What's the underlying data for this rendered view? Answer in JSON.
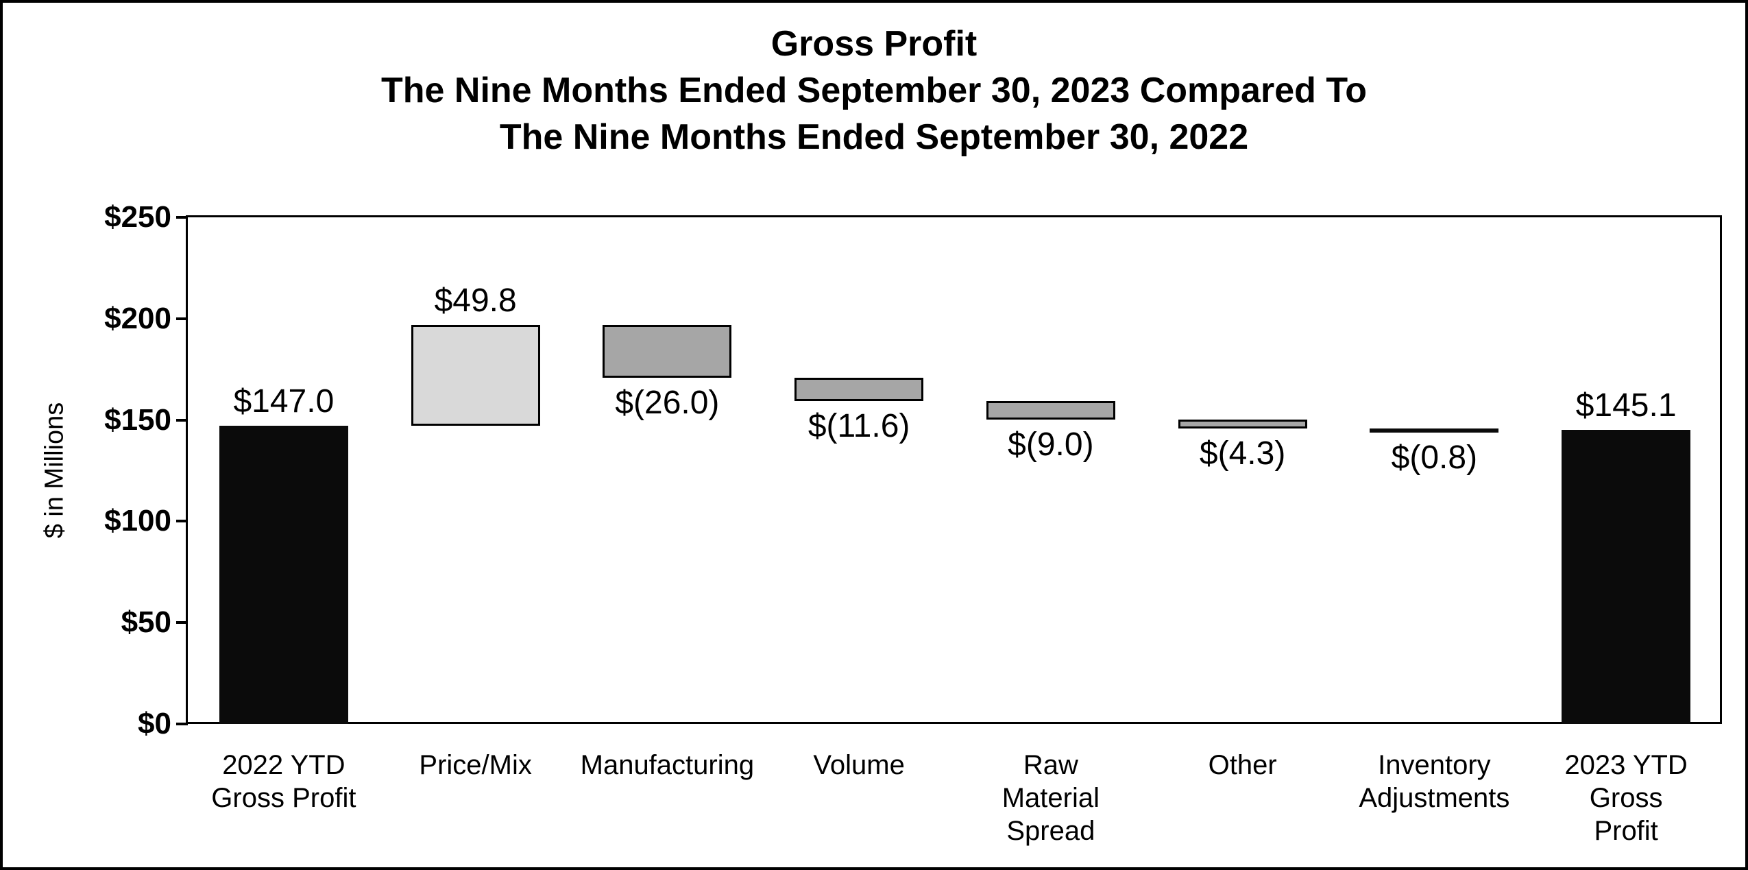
{
  "colors": {
    "background": "#ffffff",
    "frame": "#000000",
    "bar_black": "#0b0b0b",
    "bar_light_gray": "#d9d9d9",
    "bar_gray": "#a6a6a6",
    "outline": "#000000",
    "text": "#000000"
  },
  "chart_data": {
    "type": "bar",
    "subtype": "waterfall",
    "title_lines": [
      "Gross Profit",
      "The Nine Months Ended September 30, 2023 Compared To",
      "The Nine Months Ended September 30, 2022"
    ],
    "xlabel": "",
    "ylabel": "$ in Millions",
    "ylim": [
      0,
      250
    ],
    "y_tick_interval": 50,
    "grid": "off",
    "legend": "none",
    "y_ticks": [
      {
        "value": 250,
        "label": "$250"
      },
      {
        "value": 200,
        "label": "$200"
      },
      {
        "value": 150,
        "label": "$150"
      },
      {
        "value": 100,
        "label": "$100"
      },
      {
        "value": 50,
        "label": "$50"
      },
      {
        "value": 0,
        "label": "$0"
      }
    ],
    "bars": [
      {
        "category": "2022 YTD Gross Profit",
        "category_lines": [
          "2022 YTD",
          "Gross Profit"
        ],
        "value": 147.0,
        "label": "$147.0",
        "label_position": "above",
        "start": 0,
        "end": 147.0,
        "fill": "#0b0b0b",
        "outlined": false
      },
      {
        "category": "Price/Mix",
        "category_lines": [
          "Price/Mix"
        ],
        "value": 49.8,
        "label": "$49.8",
        "label_position": "above",
        "start": 147.0,
        "end": 196.8,
        "fill": "#d9d9d9",
        "outlined": true
      },
      {
        "category": "Manufacturing",
        "category_lines": [
          "Manufacturing"
        ],
        "value": -26.0,
        "label": "$(26.0)",
        "label_position": "below",
        "start": 196.8,
        "end": 170.8,
        "fill": "#a6a6a6",
        "outlined": true
      },
      {
        "category": "Volume",
        "category_lines": [
          "Volume"
        ],
        "value": -11.6,
        "label": "$(11.6)",
        "label_position": "below",
        "start": 170.8,
        "end": 159.2,
        "fill": "#a6a6a6",
        "outlined": true
      },
      {
        "category": "Raw Material Spread",
        "category_lines": [
          "Raw",
          "Material",
          "Spread"
        ],
        "value": -9.0,
        "label": "$(9.0)",
        "label_position": "below",
        "start": 159.2,
        "end": 150.2,
        "fill": "#a6a6a6",
        "outlined": true
      },
      {
        "category": "Other",
        "category_lines": [
          "Other"
        ],
        "value": -4.3,
        "label": "$(4.3)",
        "label_position": "below",
        "start": 150.2,
        "end": 145.9,
        "fill": "#a6a6a6",
        "outlined": true
      },
      {
        "category": "Inventory Adjustments",
        "category_lines": [
          "Inventory",
          "Adjustments"
        ],
        "value": -0.8,
        "label": "$(0.8)",
        "label_position": "below",
        "start": 145.9,
        "end": 145.1,
        "fill": "#0b0b0b",
        "outlined": false
      },
      {
        "category": "2023 YTD Gross Profit",
        "category_lines": [
          "2023 YTD",
          "Gross",
          "Profit"
        ],
        "value": 145.1,
        "label": "$145.1",
        "label_position": "above",
        "start": 0,
        "end": 145.1,
        "fill": "#0b0b0b",
        "outlined": false
      }
    ]
  }
}
